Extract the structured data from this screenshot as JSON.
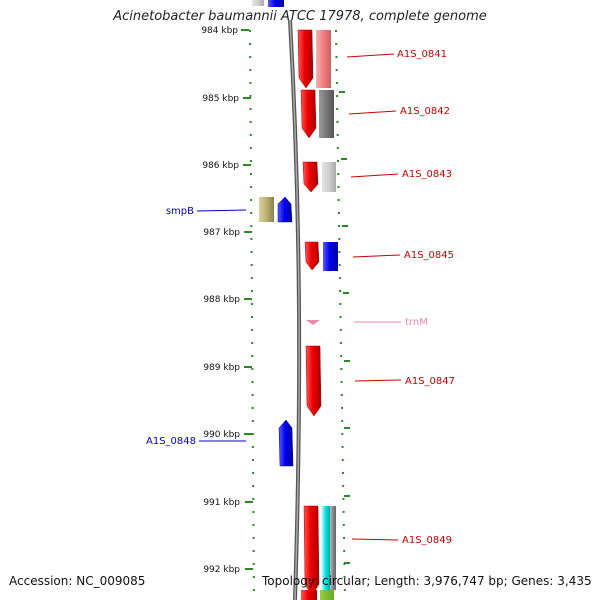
{
  "title": "Acinetobacter baumannii ATCC 17978, complete genome",
  "footer": {
    "accession": "Accession: NC_009085",
    "summary": "Topology: circular; Length: 3,976,747 bp; Genes: 3,435"
  },
  "ruler": {
    "ticks": [
      "984 kbp",
      "985 kbp",
      "986 kbp",
      "987 kbp",
      "988 kbp",
      "989 kbp",
      "990 kbp",
      "991 kbp",
      "992 kbp"
    ]
  },
  "features": [
    {
      "label": "A1S_0841",
      "side": "right",
      "color": "#cc0000"
    },
    {
      "label": "A1S_0842",
      "side": "right",
      "color": "#cc0000"
    },
    {
      "label": "A1S_0843",
      "side": "right",
      "color": "#cc0000"
    },
    {
      "label": "smpB",
      "side": "left",
      "color": "#0000cc"
    },
    {
      "label": "A1S_0845",
      "side": "right",
      "color": "#cc0000"
    },
    {
      "label": "trnM",
      "side": "right",
      "color": "#ee88aa"
    },
    {
      "label": "A1S_0847",
      "side": "right",
      "color": "#cc0000"
    },
    {
      "label": "A1S_0848",
      "side": "left",
      "color": "#0000cc"
    },
    {
      "label": "A1S_0849",
      "side": "right",
      "color": "#cc0000"
    }
  ]
}
